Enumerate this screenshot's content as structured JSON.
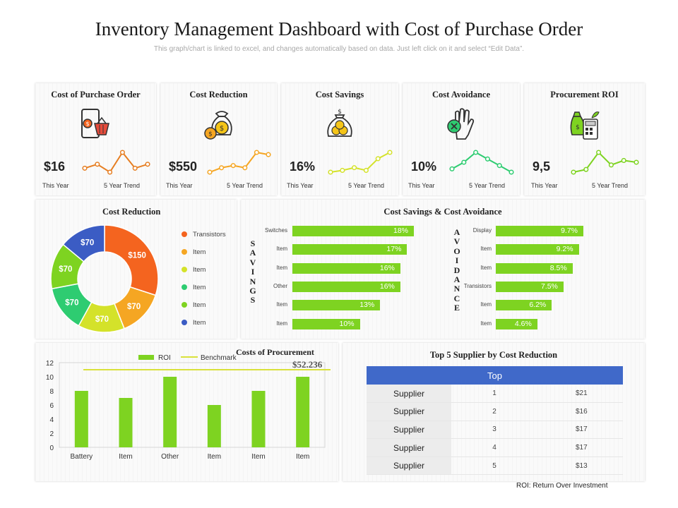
{
  "header": {
    "title": "Inventory Management Dashboard with Cost of Purchase Order",
    "subtitle": "This graph/chart is linked to excel, and changes automatically based on data. Just left click on it and select “Edit Data”."
  },
  "colors": {
    "green": "#7ed321",
    "darkgreen": "#6cbe1a",
    "orange": "#f4641f",
    "amber": "#f5a623",
    "yellow": "#d4e22a",
    "teal": "#2ecc71",
    "blue": "#3b5cc4",
    "table_header": "#4069c9",
    "benchmark": "#d9e13a"
  },
  "kpis": [
    {
      "title": "Cost of Purchase Order",
      "icon": "shopping-basket-icon",
      "value": "$16",
      "left_label": "This Year",
      "right_label": "5 Year Trend",
      "trend": [
        3,
        4,
        2,
        7,
        3,
        4
      ],
      "color": "#e67e22"
    },
    {
      "title": "Cost Reduction",
      "icon": "money-bag-coins-icon",
      "value": "$550",
      "left_label": "This Year",
      "right_label": "5 Year Trend",
      "trend": [
        2,
        2.4,
        2.6,
        2.4,
        3.8,
        3.6
      ],
      "color": "#f5a623"
    },
    {
      "title": "Cost Savings",
      "icon": "coin-bag-icon",
      "value": "16%",
      "left_label": "This Year",
      "right_label": "5 Year Trend",
      "trend": [
        2,
        2.2,
        2.5,
        2.2,
        3.5,
        4.2
      ],
      "color": "#d4e22a"
    },
    {
      "title": "Cost Avoidance",
      "icon": "hand-stop-icon",
      "value": "10%",
      "left_label": "This Year",
      "right_label": "5 Year Trend",
      "trend": [
        2,
        3,
        4.5,
        3.5,
        2.5,
        1.5
      ],
      "color": "#2ecc71"
    },
    {
      "title": "Procurement ROI",
      "icon": "calculator-money-icon",
      "value": "9,5",
      "left_label": "This Year",
      "right_label": "5 Year Trend",
      "trend": [
        2,
        2.3,
        4.2,
        2.8,
        3.3,
        3.1
      ],
      "color": "#7ed321"
    }
  ],
  "donut": {
    "title": "Cost Reduction",
    "slices": [
      {
        "label": "Transistors",
        "value": 150,
        "display": "$150",
        "color": "#f4641f"
      },
      {
        "label": "Item",
        "value": 70,
        "display": "$70",
        "color": "#f5a623"
      },
      {
        "label": "Item",
        "value": 70,
        "display": "$70",
        "color": "#d4e22a"
      },
      {
        "label": "Item",
        "value": 70,
        "display": "$70",
        "color": "#2ecc71"
      },
      {
        "label": "Item",
        "value": 70,
        "display": "$70",
        "color": "#7ed321"
      },
      {
        "label": "Item",
        "value": 70,
        "display": "$70",
        "color": "#3b5cc4"
      }
    ]
  },
  "savings_avoidance": {
    "title": "Cost Savings & Cost Avoidance",
    "savings_word": "SAVINGS",
    "avoidance_word": "AVOIDANCE",
    "savings": [
      {
        "label": "Switches",
        "value": 18,
        "display": "18%"
      },
      {
        "label": "Item",
        "value": 17,
        "display": "17%"
      },
      {
        "label": "Item",
        "value": 16,
        "display": "16%"
      },
      {
        "label": "Other",
        "value": 16,
        "display": "16%"
      },
      {
        "label": "Item",
        "value": 13,
        "display": "13%"
      },
      {
        "label": "Item",
        "value": 10,
        "display": "10%"
      }
    ],
    "avoidance": [
      {
        "label": "Display",
        "value": 9.7,
        "display": "9.7%"
      },
      {
        "label": "Item",
        "value": 9.2,
        "display": "9.2%"
      },
      {
        "label": "Item",
        "value": 8.5,
        "display": "8.5%"
      },
      {
        "label": "Transistors",
        "value": 7.5,
        "display": "7.5%"
      },
      {
        "label": "Item",
        "value": 6.2,
        "display": "6.2%"
      },
      {
        "label": "Item",
        "value": 4.6,
        "display": "4.6%"
      }
    ]
  },
  "chart_data": [
    {
      "type": "bar",
      "title": "Costs of Procurement",
      "annotation": "$52.236",
      "categories": [
        "Battery",
        "Item",
        "Other",
        "Item",
        "Item",
        "Item"
      ],
      "series": [
        {
          "name": "ROI",
          "values": [
            8,
            7,
            10,
            6,
            8,
            10
          ]
        },
        {
          "name": "Benchmark",
          "values": [
            11,
            11,
            11,
            11,
            11,
            11
          ]
        }
      ],
      "yticks": [
        0,
        2,
        4,
        6,
        8,
        10,
        12
      ],
      "ylim": [
        0,
        12
      ],
      "xlabel": "",
      "ylabel": ""
    }
  ],
  "suppliers": {
    "title": "Top 5 Supplier by Cost Reduction",
    "header": "Top",
    "rows": [
      {
        "name": "Supplier",
        "rank": "1",
        "amount": "$21"
      },
      {
        "name": "Supplier",
        "rank": "2",
        "amount": "$16"
      },
      {
        "name": "Supplier",
        "rank": "3",
        "amount": "$17"
      },
      {
        "name": "Supplier",
        "rank": "4",
        "amount": "$17"
      },
      {
        "name": "Supplier",
        "rank": "5",
        "amount": "$13"
      }
    ]
  },
  "footnote": "ROI: Return Over Investment"
}
